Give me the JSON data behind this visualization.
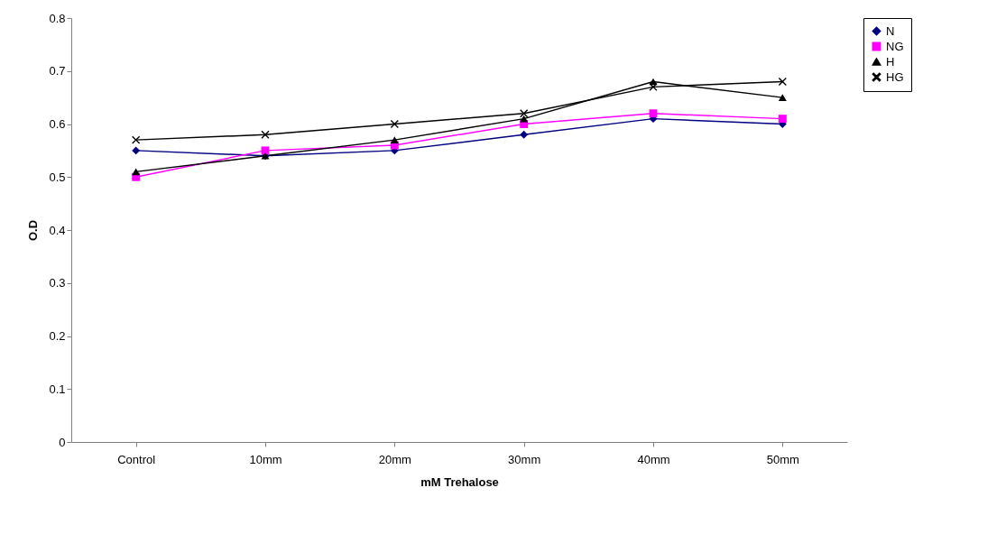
{
  "chart_data": {
    "type": "line",
    "xlabel": "mM Trehalose",
    "ylabel": "O.D",
    "categories": [
      "Control",
      "10mm",
      "20mm",
      "30mm",
      "40mm",
      "50mm"
    ],
    "ylim": [
      0,
      0.8
    ],
    "yticks": [
      0,
      0.1,
      0.2,
      0.3,
      0.4,
      0.5,
      0.6,
      0.7,
      0.8
    ],
    "grid": false,
    "legend": "right",
    "line_style": "solid",
    "series": [
      {
        "name": "N",
        "color": "#000080",
        "marker": "diamond",
        "values": [
          0.55,
          0.54,
          0.55,
          0.58,
          0.61,
          0.6
        ]
      },
      {
        "name": "NG",
        "color": "#ff00ff",
        "marker": "square",
        "values": [
          0.5,
          0.55,
          0.56,
          0.6,
          0.62,
          0.61
        ]
      },
      {
        "name": "H",
        "color": "#000000",
        "marker": "triangle",
        "values": [
          0.51,
          0.54,
          0.57,
          0.61,
          0.68,
          0.65
        ]
      },
      {
        "name": "HG",
        "color": "#000000",
        "marker": "cross",
        "values": [
          0.57,
          0.58,
          0.6,
          0.62,
          0.67,
          0.68
        ]
      }
    ]
  }
}
